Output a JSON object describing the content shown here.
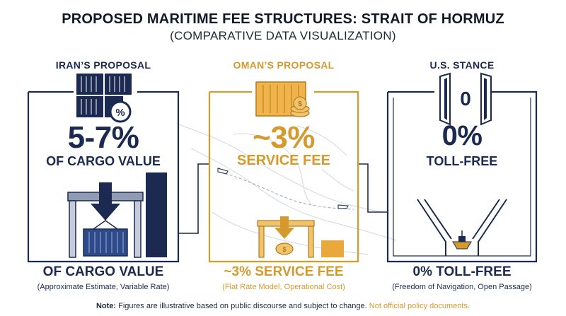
{
  "header": {
    "title": "PROPOSED MARITIME FEE STRUCTURES: STRAIT OF HORMUZ",
    "subtitle": "(COMPARATIVE DATA VISUALIZATION)"
  },
  "columns": [
    {
      "heading": "IRAN’S PROPOSAL",
      "big_value": "5-7%",
      "mid_label": "OF CARGO VALUE",
      "bottom_value": "OF CARGO VALUE",
      "bottom_note": "(Approximate Estimate, Variable Rate)",
      "icon": "percent-container-icon",
      "accent": "#1c2a52"
    },
    {
      "heading": "OMAN’S PROPOSAL",
      "big_value": "~3%",
      "mid_label": "SERVICE FEE",
      "bottom_value": "~3% SERVICE FEE",
      "bottom_note": "(Flat Rate Model, Operational Cost)",
      "icon": "coin-container-icon",
      "accent": "#d49a2e"
    },
    {
      "heading": "U.S. STANCE",
      "big_value": "0%",
      "mid_label": "TOLL-FREE",
      "bottom_value": "0% TOLL-FREE",
      "bottom_note": "(Freedom of Navigation, Open Passage)",
      "icon": "open-gate-icon",
      "gate_label": "0",
      "accent": "#1c2a52"
    }
  ],
  "footer": {
    "note_label": "Note:",
    "note_text": " Figures are illustrative based on public discourse and subject to change. ",
    "note_highlight": "Not official policy documents."
  },
  "colors": {
    "navy": "#1c2a52",
    "gold": "#d49a2e",
    "gold_light": "#f0c46a"
  }
}
